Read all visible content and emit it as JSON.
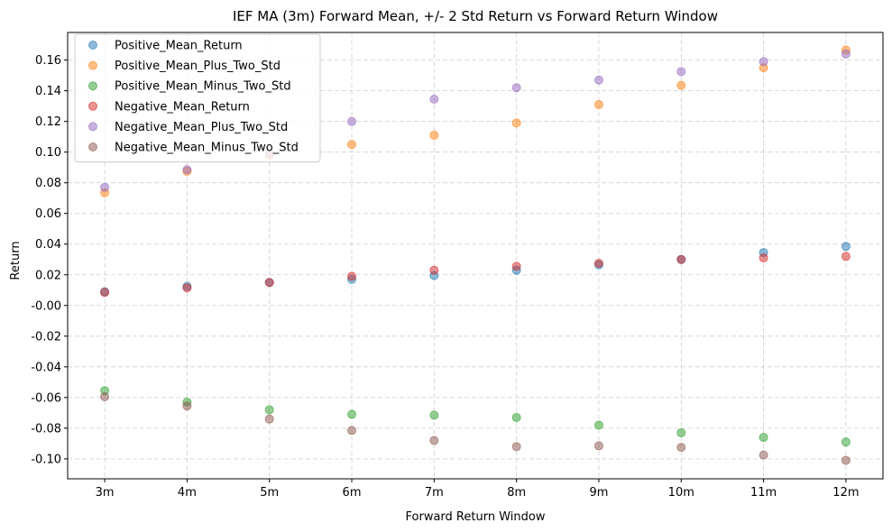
{
  "chart_data": {
    "type": "scatter",
    "title": "IEF MA (3m) Forward Mean, +/- 2 Std Return vs Forward Return Window",
    "xlabel": "Forward Return Window",
    "ylabel": "Return",
    "categories": [
      "3m",
      "4m",
      "5m",
      "6m",
      "7m",
      "8m",
      "9m",
      "10m",
      "11m",
      "12m"
    ],
    "ylim": [
      -0.113,
      0.178
    ],
    "yticks": [
      -0.1,
      -0.08,
      -0.06,
      -0.04,
      -0.02,
      0.0,
      0.02,
      0.04,
      0.06,
      0.08,
      0.1,
      0.12,
      0.14,
      0.16
    ],
    "ytick_labels": [
      "-0.10",
      "-0.08",
      "-0.06",
      "-0.04",
      "-0.02",
      "-0.00",
      "0.02",
      "0.04",
      "0.06",
      "0.08",
      "0.10",
      "0.12",
      "0.14",
      "0.16"
    ],
    "grid": true,
    "legend_position": "top-left",
    "series": [
      {
        "name": "Positive_Mean_Return",
        "color": "#1f77b4",
        "values": [
          0.009,
          0.0125,
          0.015,
          0.017,
          0.0195,
          0.023,
          0.0265,
          0.03,
          0.0345,
          0.0385
        ]
      },
      {
        "name": "Positive_Mean_Plus_Two_Std",
        "color": "#ff7f0e",
        "values": [
          0.0735,
          0.0875,
          0.098,
          0.105,
          0.111,
          0.119,
          0.131,
          0.1435,
          0.155,
          0.1665
        ]
      },
      {
        "name": "Positive_Mean_Minus_Two_Std",
        "color": "#2ca02c",
        "values": [
          -0.0555,
          -0.063,
          -0.068,
          -0.071,
          -0.0715,
          -0.073,
          -0.078,
          -0.083,
          -0.086,
          -0.089
        ]
      },
      {
        "name": "Negative_Mean_Return",
        "color": "#d62728",
        "values": [
          0.0085,
          0.0115,
          0.015,
          0.019,
          0.023,
          0.0255,
          0.0275,
          0.03,
          0.031,
          0.032
        ]
      },
      {
        "name": "Negative_Mean_Plus_Two_Std",
        "color": "#9467bd",
        "values": [
          0.077,
          0.0885,
          0.099,
          0.12,
          0.1345,
          0.142,
          0.147,
          0.1525,
          0.159,
          0.164
        ]
      },
      {
        "name": "Negative_Mean_Minus_Two_Std",
        "color": "#8c564b",
        "values": [
          -0.0595,
          -0.0655,
          -0.074,
          -0.0815,
          -0.088,
          -0.092,
          -0.0915,
          -0.0925,
          -0.0975,
          -0.101
        ]
      }
    ]
  }
}
